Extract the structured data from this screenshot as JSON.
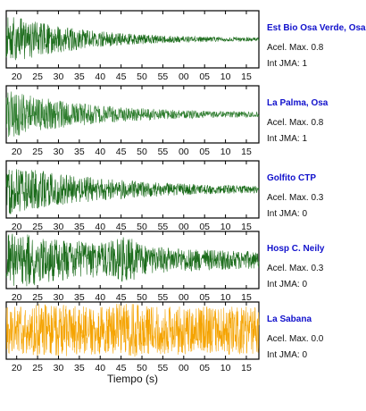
{
  "chart_data": {
    "type": "line",
    "xlabel": "Tiempo (s)",
    "x_ticks": [
      "20",
      "25",
      "30",
      "35",
      "40",
      "45",
      "50",
      "55",
      "00",
      "05",
      "10",
      "15"
    ],
    "panels": [
      {
        "name": "Est Bio Osa Verde, Osa",
        "acel": "Acel. Max. 0.8",
        "int": "Int JMA: 1",
        "color": "#1a6b1a",
        "amp": 0.9,
        "decay": 0.055,
        "noise": 0.03,
        "burst_t": 0,
        "burst_a": 0
      },
      {
        "name": "La Palma, Osa",
        "acel": "Acel. Max. 0.8",
        "int": "Int JMA: 1",
        "color": "#2e7d2e",
        "amp": 0.85,
        "decay": 0.05,
        "noise": 0.06,
        "burst_t": 0,
        "burst_a": 0
      },
      {
        "name": "Golfito CTP",
        "acel": "Acel. Max. 0.3",
        "int": "Int JMA: 0",
        "color": "#1a6b1a",
        "amp": 0.9,
        "decay": 0.04,
        "noise": 0.05,
        "burst_t": 0,
        "burst_a": 0
      },
      {
        "name": "Hosp C. Neily",
        "acel": "Acel. Max. 0.3",
        "int": "Int JMA: 0",
        "color": "#1a6b1a",
        "amp": 0.9,
        "decay": 0.025,
        "noise": 0.12,
        "burst_t": 46,
        "burst_a": 0.6
      },
      {
        "name": "La Sabana",
        "acel": "Acel. Max. 0.0",
        "int": "Int JMA: 0",
        "color": "#f5a300",
        "amp": 0.55,
        "decay": 0.0,
        "noise": 0.35,
        "burst_t": 27,
        "burst_a": 1.0
      }
    ]
  }
}
